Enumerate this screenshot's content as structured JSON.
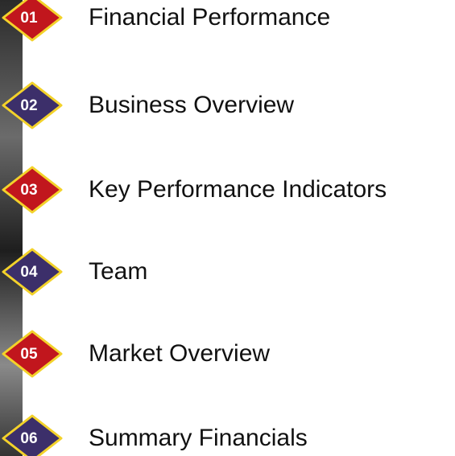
{
  "items": [
    {
      "number": "01",
      "label": "Financial Performance"
    },
    {
      "number": "02",
      "label": "Business Overview"
    },
    {
      "number": "03",
      "label": "Key Performance Indicators"
    },
    {
      "number": "04",
      "label": "Team"
    },
    {
      "number": "05",
      "label": "Market Overview"
    },
    {
      "number": "06",
      "label": "Summary Financials"
    }
  ]
}
